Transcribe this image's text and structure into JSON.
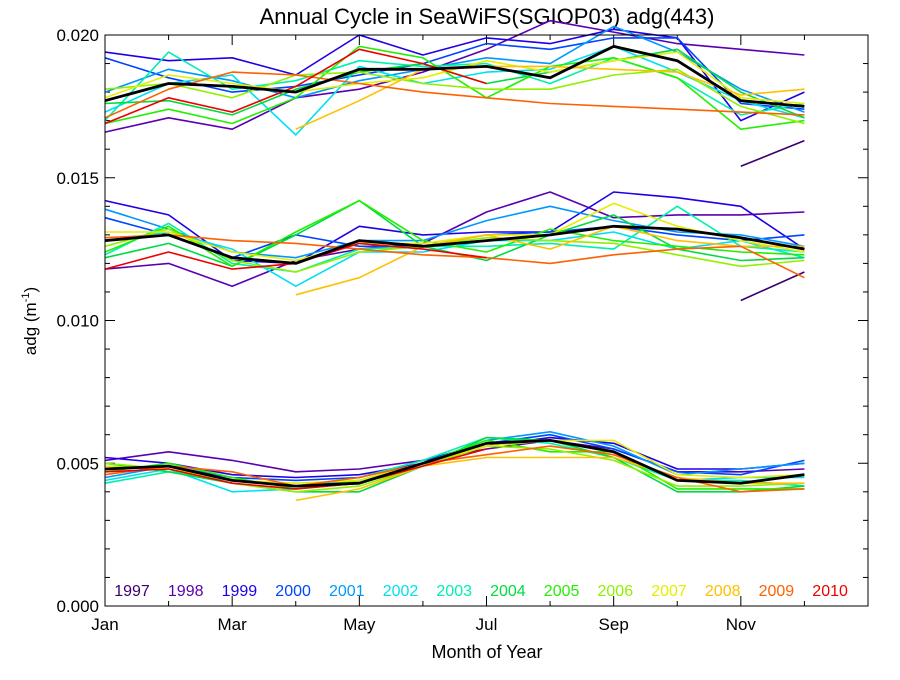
{
  "chart_data": {
    "type": "line",
    "title": "Annual Cycle in SeaWiFS(SGIOP03) adg(443)",
    "xlabel": "Month of Year",
    "ylabel": "adg (m",
    "ylabel_sup": "-1",
    "ylabel_close": ")",
    "xlim": [
      1,
      13
    ],
    "ylim": [
      0,
      0.02
    ],
    "x_ticks": [
      1,
      3,
      5,
      7,
      9,
      11
    ],
    "x_tick_labels": [
      "Jan",
      "Mar",
      "May",
      "Jul",
      "Sep",
      "Nov"
    ],
    "y_ticks": [
      0,
      0.005,
      0.01,
      0.015,
      0.02
    ],
    "y_tick_labels": [
      "0.000",
      "0.005",
      "0.010",
      "0.015",
      "0.020"
    ],
    "grid": false,
    "legend_position": "bottom",
    "x": [
      1,
      2,
      3,
      4,
      5,
      6,
      7,
      8,
      9,
      10,
      11,
      12
    ],
    "series": [
      {
        "name": "1997",
        "color": "#3a0070",
        "groups": {
          "upper": [
            null,
            null,
            null,
            null,
            null,
            null,
            null,
            null,
            null,
            null,
            0.0154,
            0.0163
          ],
          "middle": [
            null,
            null,
            null,
            null,
            null,
            null,
            null,
            null,
            null,
            null,
            0.0107,
            0.0117
          ],
          "lower": [
            null,
            null,
            null,
            null,
            null,
            null,
            null,
            null,
            null,
            null,
            null,
            null
          ]
        }
      },
      {
        "name": "1998",
        "color": "#5a00b0",
        "groups": {
          "upper": [
            0.0166,
            0.0171,
            0.0167,
            0.0178,
            0.0181,
            0.0187,
            0.0195,
            0.0205,
            0.0201,
            0.0197,
            0.0195,
            0.0193
          ],
          "middle": [
            0.0118,
            0.012,
            0.0112,
            0.0121,
            0.0125,
            0.0127,
            0.0138,
            0.0145,
            0.0136,
            0.0137,
            0.0137,
            0.0138
          ],
          "lower": [
            0.0051,
            0.0054,
            0.0051,
            0.0047,
            0.0048,
            0.0051,
            0.0055,
            0.0058,
            0.0055,
            0.0047,
            0.0047,
            0.0048
          ]
        }
      },
      {
        "name": "1999",
        "color": "#1e00e6",
        "groups": {
          "upper": [
            0.0194,
            0.0191,
            0.0192,
            0.0186,
            0.02,
            0.0193,
            0.0199,
            0.0197,
            0.0202,
            0.0199,
            0.017,
            0.018
          ],
          "middle": [
            0.0142,
            0.0137,
            0.0121,
            0.012,
            0.0133,
            0.013,
            0.0131,
            0.0131,
            0.0145,
            0.0143,
            0.014,
            0.0125
          ],
          "lower": [
            0.0052,
            0.005,
            0.0046,
            0.0045,
            0.0046,
            0.005,
            0.0056,
            0.0059,
            0.0057,
            0.0048,
            0.0048,
            0.005
          ]
        }
      },
      {
        "name": "2000",
        "color": "#0044ff",
        "groups": {
          "upper": [
            0.0192,
            0.0185,
            0.018,
            0.0182,
            0.0186,
            0.019,
            0.0197,
            0.0195,
            0.0199,
            0.0199,
            0.0176,
            0.0174
          ],
          "middle": [
            0.0136,
            0.013,
            0.0122,
            0.013,
            0.0126,
            0.0126,
            0.013,
            0.0131,
            0.0133,
            0.013,
            0.0128,
            0.013
          ],
          "lower": [
            0.0048,
            0.0049,
            0.0045,
            0.0044,
            0.0045,
            0.0051,
            0.0057,
            0.006,
            0.0055,
            0.0047,
            0.0046,
            0.0051
          ]
        }
      },
      {
        "name": "2001",
        "color": "#0098ff",
        "groups": {
          "upper": [
            0.018,
            0.0188,
            0.0184,
            0.0178,
            0.0184,
            0.0188,
            0.0192,
            0.019,
            0.0203,
            0.0194,
            0.0181,
            0.0173
          ],
          "middle": [
            0.0139,
            0.0132,
            0.0124,
            0.0122,
            0.0128,
            0.0128,
            0.0135,
            0.014,
            0.0135,
            0.0131,
            0.013,
            0.0126
          ],
          "lower": [
            0.0045,
            0.0049,
            0.0044,
            0.0042,
            0.0044,
            0.005,
            0.0058,
            0.0061,
            0.0056,
            0.0046,
            0.0048,
            0.005
          ]
        }
      },
      {
        "name": "2002",
        "color": "#00e0f0",
        "groups": {
          "upper": [
            0.0173,
            0.0183,
            0.0186,
            0.0165,
            0.0189,
            0.0183,
            0.0187,
            0.0188,
            0.0196,
            0.0187,
            0.0177,
            0.0171
          ],
          "middle": [
            0.0128,
            0.0131,
            0.0125,
            0.0112,
            0.0124,
            0.0124,
            0.0128,
            0.0128,
            0.0131,
            0.0125,
            0.0128,
            0.0122
          ],
          "lower": [
            0.0044,
            0.0048,
            0.004,
            0.0041,
            0.0043,
            0.0049,
            0.0057,
            0.0058,
            0.0054,
            0.0044,
            0.0045,
            0.0045
          ]
        }
      },
      {
        "name": "2003",
        "color": "#00f0b0",
        "groups": {
          "upper": [
            0.017,
            0.0194,
            0.0181,
            0.0184,
            0.0191,
            0.0189,
            0.019,
            0.0183,
            0.0192,
            0.0185,
            0.0172,
            0.0176
          ],
          "middle": [
            0.0123,
            0.0134,
            0.012,
            0.0117,
            0.0125,
            0.0126,
            0.0126,
            0.0127,
            0.0125,
            0.014,
            0.0126,
            0.0124
          ],
          "lower": [
            0.0043,
            0.0047,
            0.0044,
            0.0042,
            0.0045,
            0.0051,
            0.0059,
            0.0057,
            0.0052,
            0.0044,
            0.0044,
            0.0042
          ]
        }
      },
      {
        "name": "2004",
        "color": "#00dc40",
        "groups": {
          "upper": [
            0.0176,
            0.0177,
            0.0172,
            0.0181,
            0.0187,
            0.019,
            0.0183,
            0.0187,
            0.0191,
            0.0195,
            0.018,
            0.0171
          ],
          "middle": [
            0.0122,
            0.0127,
            0.0119,
            0.013,
            0.0142,
            0.0126,
            0.0121,
            0.013,
            0.0137,
            0.0125,
            0.0121,
            0.0122
          ],
          "lower": [
            0.005,
            0.0047,
            0.0043,
            0.004,
            0.004,
            0.0049,
            0.0059,
            0.0058,
            0.0052,
            0.004,
            0.004,
            0.0042
          ]
        }
      },
      {
        "name": "2005",
        "color": "#22f000",
        "groups": {
          "upper": [
            0.0169,
            0.0174,
            0.0169,
            0.0178,
            0.0196,
            0.0192,
            0.0178,
            0.0189,
            0.0192,
            0.0185,
            0.0167,
            0.017
          ],
          "middle": [
            0.0124,
            0.0133,
            0.0119,
            0.0131,
            0.0142,
            0.0128,
            0.0124,
            0.0132,
            0.0128,
            0.0126,
            0.0124,
            0.0123
          ],
          "lower": [
            0.0047,
            0.005,
            0.0045,
            0.0041,
            0.0044,
            0.005,
            0.0058,
            0.0054,
            0.0054,
            0.0041,
            0.0041,
            0.0041
          ]
        }
      },
      {
        "name": "2006",
        "color": "#90f000",
        "groups": {
          "upper": [
            0.0181,
            0.0183,
            0.0178,
            0.0186,
            0.0187,
            0.0183,
            0.0181,
            0.0181,
            0.0186,
            0.0188,
            0.0175,
            0.0169
          ],
          "middle": [
            0.0126,
            0.0132,
            0.0121,
            0.0117,
            0.0124,
            0.0126,
            0.0129,
            0.0128,
            0.0127,
            0.0123,
            0.0119,
            0.0121
          ],
          "lower": [
            0.005,
            0.0048,
            0.0043,
            0.004,
            0.0042,
            0.0049,
            0.0056,
            0.0055,
            0.0051,
            0.0042,
            0.0042,
            0.0043
          ]
        }
      },
      {
        "name": "2007",
        "color": "#e6ee00",
        "groups": {
          "upper": [
            0.0178,
            0.0186,
            0.0183,
            0.018,
            0.0183,
            0.0185,
            0.0191,
            0.0187,
            0.0191,
            0.0194,
            0.0178,
            0.0176
          ],
          "middle": [
            0.0131,
            0.0131,
            0.0124,
            0.0121,
            0.0127,
            0.0127,
            0.013,
            0.013,
            0.0141,
            0.0133,
            0.0128,
            0.0124
          ],
          "lower": [
            0.0049,
            0.0048,
            0.0044,
            0.0043,
            0.0044,
            0.005,
            0.0056,
            0.0058,
            0.0058,
            0.0046,
            0.0045,
            0.0046
          ]
        }
      },
      {
        "name": "2008",
        "color": "#ffc000",
        "groups": {
          "upper": [
            null,
            null,
            null,
            0.0167,
            0.0177,
            0.0188,
            0.0189,
            0.0189,
            0.0188,
            0.0187,
            0.0179,
            0.0181
          ],
          "middle": [
            null,
            null,
            null,
            0.0109,
            0.0115,
            0.0126,
            0.013,
            0.0125,
            0.0133,
            0.0128,
            0.0126,
            0.0126
          ],
          "lower": [
            null,
            null,
            null,
            0.0037,
            0.0041,
            0.0049,
            0.0052,
            0.0052,
            0.0052,
            0.0045,
            0.0043,
            0.0043
          ]
        }
      },
      {
        "name": "2009",
        "color": "#ff6000",
        "groups": {
          "upper": [
            0.0171,
            0.0181,
            0.0187,
            0.0186,
            0.0183,
            0.018,
            0.0178,
            0.0176,
            0.0175,
            0.0174,
            0.0173,
            0.0172
          ],
          "middle": [
            0.0129,
            0.013,
            0.0128,
            0.0127,
            0.0125,
            0.0123,
            0.0122,
            0.012,
            0.0123,
            0.0125,
            0.0126,
            0.0115
          ],
          "lower": [
            0.0046,
            0.0049,
            0.0047,
            0.0042,
            0.0045,
            0.005,
            0.0053,
            0.0056,
            0.0053,
            0.0045,
            0.004,
            0.0041
          ]
        }
      },
      {
        "name": "2010",
        "color": "#ee0000",
        "groups": {
          "upper": [
            0.0169,
            0.0178,
            0.0173,
            0.0182,
            0.0195,
            0.019,
            0.0183,
            null,
            null,
            null,
            null,
            null
          ],
          "middle": [
            0.0118,
            0.0124,
            0.0118,
            0.012,
            0.0127,
            0.0125,
            0.0122,
            null,
            null,
            null,
            null,
            null
          ],
          "lower": [
            0.0047,
            0.0048,
            0.0043,
            0.0041,
            0.0043,
            0.0049,
            0.0055,
            null,
            null,
            null,
            null,
            null
          ]
        }
      },
      {
        "name": "",
        "color": "#000000",
        "mean": true,
        "groups": {
          "upper": [
            0.0177,
            0.0183,
            0.0182,
            0.018,
            0.0188,
            0.0188,
            0.0189,
            0.0185,
            0.0196,
            0.0191,
            0.0177,
            0.0175
          ],
          "middle": [
            0.0128,
            0.013,
            0.0122,
            0.012,
            0.0128,
            0.0126,
            0.0128,
            0.013,
            0.0133,
            0.0132,
            0.0129,
            0.0125
          ],
          "lower": [
            0.0048,
            0.0049,
            0.0044,
            0.0042,
            0.0043,
            0.005,
            0.0057,
            0.0058,
            0.0054,
            0.0044,
            0.0043,
            0.0046
          ]
        }
      }
    ]
  }
}
